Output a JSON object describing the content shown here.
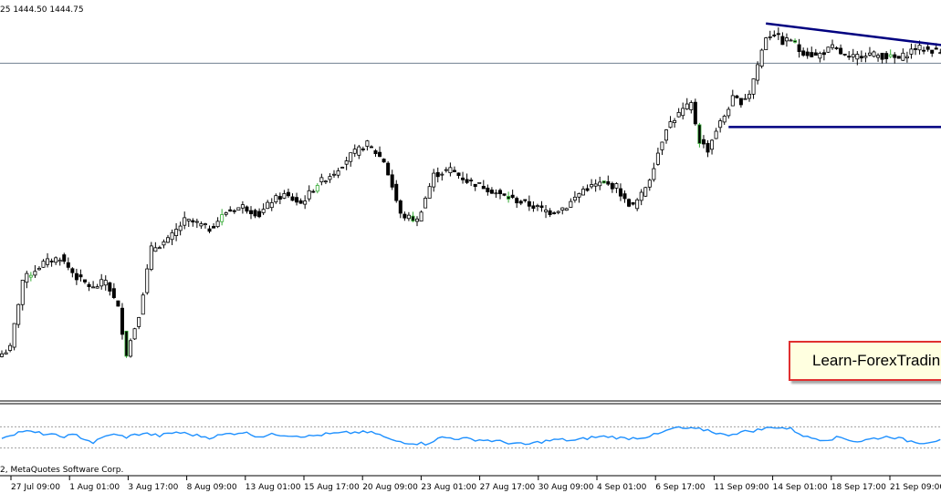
{
  "header": {
    "ohlc_text": "25 1444.50 1444.75"
  },
  "footer": {
    "copyright": "2, MetaQuotes Software Corp."
  },
  "watermark": {
    "text": "Learn-ForexTradin"
  },
  "colors": {
    "candle": "#000000",
    "up_candle_accent": "#33aa33",
    "trendline": "#000080",
    "indicator": "#1e90ff",
    "level_line": "#708090",
    "watermark_border": "#e03030",
    "watermark_bg": "#ffffe0"
  },
  "chart_data": [
    {
      "type": "candlestick",
      "title": "",
      "xlabel": "",
      "ylabel": "",
      "x_tick_labels": [
        "27 Jul 09:00",
        "1 Aug 01:00",
        "3 Aug 17:00",
        "8 Aug 09:00",
        "13 Aug 01:00",
        "15 Aug 17:00",
        "20 Aug 09:00",
        "23 Aug 01:00",
        "27 Aug 17:00",
        "30 Aug 09:00",
        "4 Sep 01:00",
        "6 Sep 17:00",
        "11 Sep 09:00",
        "14 Sep 01:00",
        "18 Sep 17:00",
        "21 Sep 09:00"
      ],
      "close_series": [
        [
          0,
          1336
        ],
        [
          2,
          1338
        ],
        [
          5,
          1362
        ],
        [
          10,
          1368
        ],
        [
          14,
          1370
        ],
        [
          18,
          1363
        ],
        [
          22,
          1359
        ],
        [
          25,
          1362
        ],
        [
          28,
          1352
        ],
        [
          30,
          1336
        ],
        [
          33,
          1350
        ],
        [
          36,
          1373
        ],
        [
          40,
          1376
        ],
        [
          44,
          1383
        ],
        [
          47,
          1382
        ],
        [
          50,
          1380
        ],
        [
          54,
          1386
        ],
        [
          58,
          1388
        ],
        [
          62,
          1385
        ],
        [
          65,
          1390
        ],
        [
          68,
          1392
        ],
        [
          72,
          1389
        ],
        [
          76,
          1396
        ],
        [
          80,
          1400
        ],
        [
          84,
          1406
        ],
        [
          88,
          1410
        ],
        [
          92,
          1404
        ],
        [
          94,
          1395
        ],
        [
          96,
          1385
        ],
        [
          100,
          1383
        ],
        [
          104,
          1399
        ],
        [
          108,
          1401
        ],
        [
          112,
          1397
        ],
        [
          116,
          1395
        ],
        [
          120,
          1392
        ],
        [
          124,
          1390
        ],
        [
          128,
          1388
        ],
        [
          132,
          1386
        ],
        [
          136,
          1388
        ],
        [
          140,
          1394
        ],
        [
          144,
          1396
        ],
        [
          148,
          1395
        ],
        [
          150,
          1390
        ],
        [
          152,
          1388
        ],
        [
          154,
          1392
        ],
        [
          156,
          1398
        ],
        [
          160,
          1416
        ],
        [
          164,
          1422
        ],
        [
          166,
          1424
        ],
        [
          168,
          1411
        ],
        [
          170,
          1408
        ],
        [
          172,
          1415
        ],
        [
          174,
          1420
        ],
        [
          176,
          1426
        ],
        [
          178,
          1425
        ],
        [
          180,
          1428
        ],
        [
          182,
          1438
        ],
        [
          184,
          1448
        ],
        [
          186,
          1449
        ],
        [
          188,
          1446
        ],
        [
          190,
          1447
        ],
        [
          192,
          1443
        ],
        [
          196,
          1441
        ],
        [
          200,
          1444
        ],
        [
          204,
          1440
        ],
        [
          208,
          1442
        ],
        [
          212,
          1441
        ],
        [
          216,
          1440
        ],
        [
          220,
          1444
        ],
        [
          224,
          1443
        ],
        [
          227,
          1442
        ]
      ],
      "trendlines": [
        {
          "name": "",
          "from": [
            175,
            1416
          ],
          "to": [
            227,
            1416
          ]
        },
        {
          "name": "",
          "from": [
            184,
            1452.5
          ],
          "to": [
            227,
            1444.75
          ]
        }
      ],
      "horizontal_levels": [
        1438.5
      ],
      "y_range": [
        1320,
        1455
      ]
    },
    {
      "type": "line",
      "title": "",
      "xlabel": "",
      "ylabel": "",
      "levels": [
        70,
        30
      ],
      "ylim": [
        0,
        100
      ],
      "series": [
        {
          "name": "",
          "values": [
            [
              0,
              50
            ],
            [
              5,
              62
            ],
            [
              10,
              57
            ],
            [
              14,
              52
            ],
            [
              18,
              54
            ],
            [
              22,
              40
            ],
            [
              26,
              56
            ],
            [
              30,
              51
            ],
            [
              34,
              58
            ],
            [
              38,
              53
            ],
            [
              42,
              60
            ],
            [
              46,
              55
            ],
            [
              50,
              50
            ],
            [
              54,
              56
            ],
            [
              58,
              60
            ],
            [
              62,
              52
            ],
            [
              66,
              56
            ],
            [
              70,
              54
            ],
            [
              74,
              52
            ],
            [
              78,
              56
            ],
            [
              82,
              58
            ],
            [
              86,
              60
            ],
            [
              90,
              58
            ],
            [
              94,
              44
            ],
            [
              98,
              40
            ],
            [
              102,
              38
            ],
            [
              106,
              50
            ],
            [
              110,
              48
            ],
            [
              114,
              46
            ],
            [
              118,
              44
            ],
            [
              122,
              40
            ],
            [
              126,
              36
            ],
            [
              130,
              42
            ],
            [
              134,
              46
            ],
            [
              138,
              44
            ],
            [
              142,
              50
            ],
            [
              146,
              52
            ],
            [
              150,
              48
            ],
            [
              154,
              50
            ],
            [
              158,
              56
            ],
            [
              162,
              68
            ],
            [
              166,
              66
            ],
            [
              170,
              64
            ],
            [
              174,
              54
            ],
            [
              178,
              60
            ],
            [
              182,
              64
            ],
            [
              186,
              70
            ],
            [
              190,
              66
            ],
            [
              194,
              50
            ],
            [
              198,
              46
            ],
            [
              202,
              50
            ],
            [
              206,
              42
            ],
            [
              210,
              48
            ],
            [
              214,
              52
            ],
            [
              218,
              44
            ],
            [
              222,
              40
            ],
            [
              226,
              46
            ]
          ]
        }
      ]
    }
  ]
}
